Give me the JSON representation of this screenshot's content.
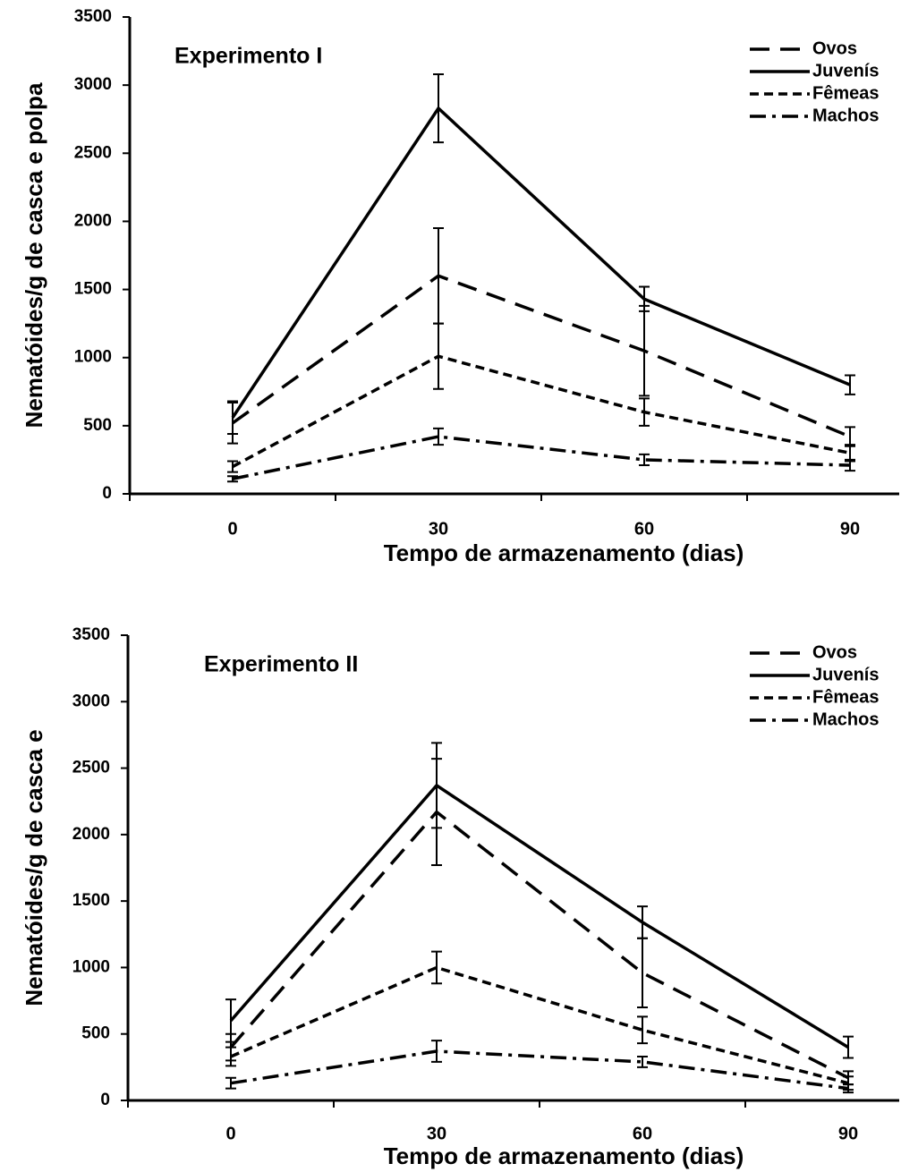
{
  "chart_data": [
    {
      "type": "line",
      "title": "Experimento I",
      "ylabel": "Nematóides/g de casca e polpa",
      "xlabel": "Tempo de armazenamento (dias)",
      "categories": [
        "0",
        "30",
        "60",
        "90"
      ],
      "ylim": [
        0,
        3500
      ],
      "yticks": [
        0,
        500,
        1000,
        1500,
        2000,
        2500,
        3000,
        3500
      ],
      "legend": "upper right",
      "series": [
        {
          "name": "Ovos",
          "color": "#000000",
          "dash": "long-dash",
          "values": [
            520,
            1600,
            1050,
            420
          ],
          "errors": [
            150,
            350,
            330,
            70
          ]
        },
        {
          "name": "Juvenís",
          "color": "#000000",
          "dash": "solid",
          "values": [
            560,
            2830,
            1430,
            800
          ],
          "errors": [
            120,
            250,
            90,
            70
          ]
        },
        {
          "name": "Fêmeas",
          "color": "#000000",
          "dash": "short-dash",
          "values": [
            200,
            1010,
            600,
            300
          ],
          "errors": [
            40,
            240,
            100,
            60
          ]
        },
        {
          "name": "Machos",
          "color": "#000000",
          "dash": "dash-dot",
          "values": [
            110,
            420,
            250,
            210
          ],
          "errors": [
            20,
            60,
            40,
            40
          ]
        }
      ]
    },
    {
      "type": "line",
      "title": "Experimento II",
      "ylabel": "Nematóides/g de casca e",
      "xlabel": "Tempo de armazenamento (dias)",
      "categories": [
        "0",
        "30",
        "60",
        "90"
      ],
      "ylim": [
        0,
        3500
      ],
      "yticks": [
        0,
        500,
        1000,
        1500,
        2000,
        2500,
        3000,
        3500
      ],
      "legend": "upper right",
      "series": [
        {
          "name": "Ovos",
          "color": "#000000",
          "dash": "long-dash",
          "values": [
            400,
            2170,
            960,
            170
          ],
          "errors": [
            100,
            400,
            260,
            50
          ]
        },
        {
          "name": "Juvenís",
          "color": "#000000",
          "dash": "solid",
          "values": [
            600,
            2370,
            1340,
            400
          ],
          "errors": [
            160,
            320,
            120,
            80
          ]
        },
        {
          "name": "Fêmeas",
          "color": "#000000",
          "dash": "short-dash",
          "values": [
            330,
            1000,
            530,
            130
          ],
          "errors": [
            70,
            120,
            100,
            50
          ]
        },
        {
          "name": "Machos",
          "color": "#000000",
          "dash": "dash-dot",
          "values": [
            130,
            370,
            290,
            90
          ],
          "errors": [
            40,
            80,
            40,
            30
          ]
        }
      ]
    }
  ]
}
